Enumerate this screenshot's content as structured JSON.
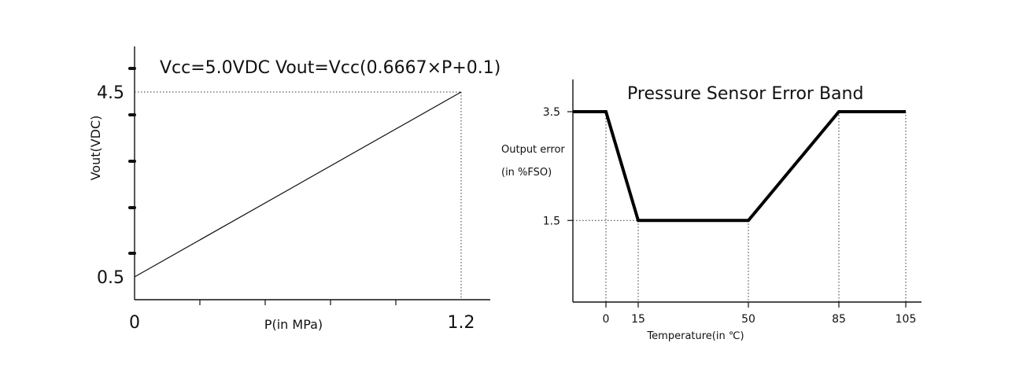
{
  "chart_data": [
    {
      "type": "line",
      "title": "Vcc=5.0VDC   Vout=Vcc(0.6667×P+0.1)",
      "xlabel": "P(in MPa)",
      "ylabel": "Vout(VDC)",
      "x_ticks": [
        "0",
        "1.2"
      ],
      "y_ticks": [
        "0.5",
        "4.5"
      ],
      "xlim": [
        0,
        1.2
      ],
      "ylim": [
        0.5,
        4.5
      ],
      "series": [
        {
          "x": [
            0,
            1.2
          ],
          "y": [
            0.5,
            4.5
          ]
        }
      ],
      "grid": false
    },
    {
      "type": "line",
      "title": "Pressure Sensor Error Band",
      "xlabel": "Temperature(in ℃)",
      "ylabel": "Output error (in %FSO)",
      "ylabel_line1": "Output error",
      "ylabel_line2": "(in %FSO)",
      "x_ticks": [
        "0",
        "15",
        "50",
        "85",
        "105"
      ],
      "y_ticks": [
        "1.5",
        "3.5"
      ],
      "xlim": [
        -10,
        105
      ],
      "ylim": [
        0,
        3.5
      ],
      "series": [
        {
          "x": [
            -10,
            0,
            15,
            50,
            85,
            105
          ],
          "y": [
            3.5,
            3.5,
            1.5,
            1.5,
            3.5,
            3.5
          ]
        }
      ],
      "grid": false
    }
  ]
}
